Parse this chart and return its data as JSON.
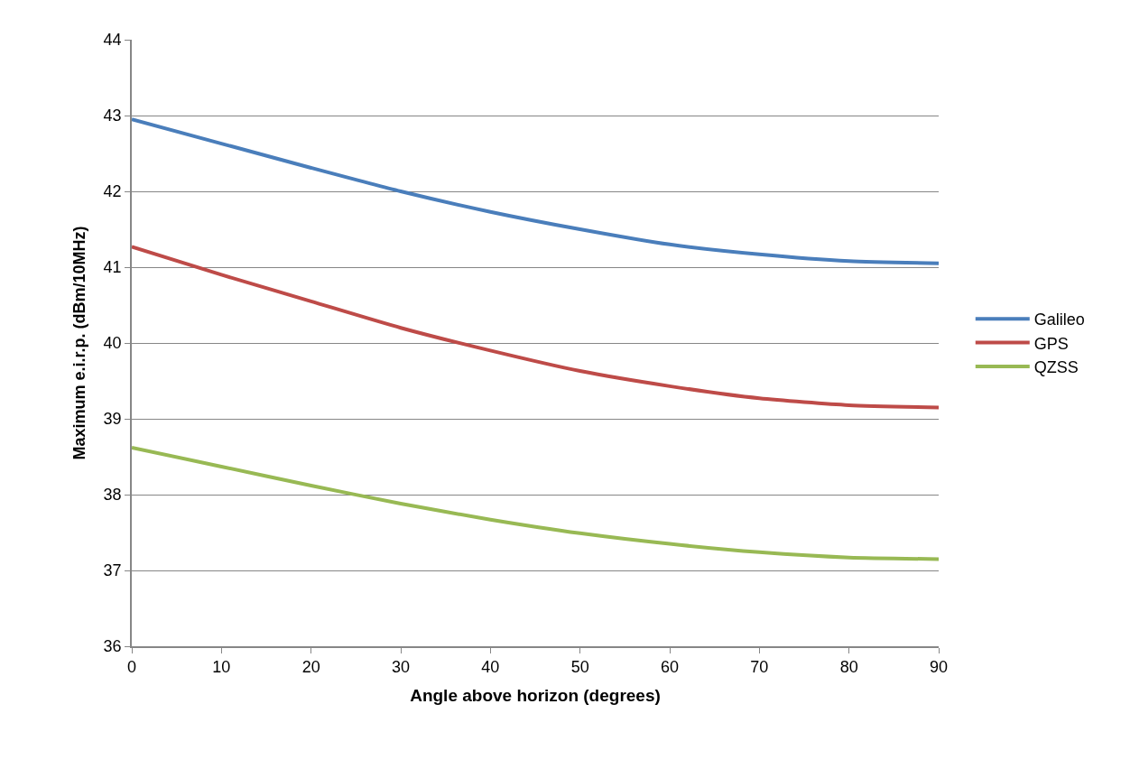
{
  "chart_data": {
    "type": "line",
    "xlabel": "Angle above horizon (degrees)",
    "ylabel": "Maximum e.i.r.p. (dBm/10MHz)",
    "x": [
      0,
      10,
      20,
      30,
      40,
      50,
      60,
      70,
      80,
      90
    ],
    "series": [
      {
        "name": "Galileo",
        "color": "#4a7ebb",
        "values": [
          42.95,
          42.63,
          42.31,
          42.0,
          41.73,
          41.5,
          41.3,
          41.17,
          41.08,
          41.05
        ]
      },
      {
        "name": "GPS",
        "color": "#be4b48",
        "values": [
          41.27,
          40.9,
          40.55,
          40.2,
          39.9,
          39.63,
          39.43,
          39.27,
          39.18,
          39.15
        ]
      },
      {
        "name": "QZSS",
        "color": "#98b954",
        "values": [
          38.62,
          38.37,
          38.12,
          37.88,
          37.67,
          37.49,
          37.35,
          37.24,
          37.17,
          37.15
        ]
      }
    ],
    "xlim": [
      0,
      90
    ],
    "xticks": [
      0,
      10,
      20,
      30,
      40,
      50,
      60,
      70,
      80,
      90
    ],
    "ylim": [
      36,
      44
    ],
    "yticks": [
      36,
      37,
      38,
      39,
      40,
      41,
      42,
      43,
      44
    ],
    "grid": "y",
    "legend": "right",
    "marker": "none",
    "line_style": "solid"
  }
}
